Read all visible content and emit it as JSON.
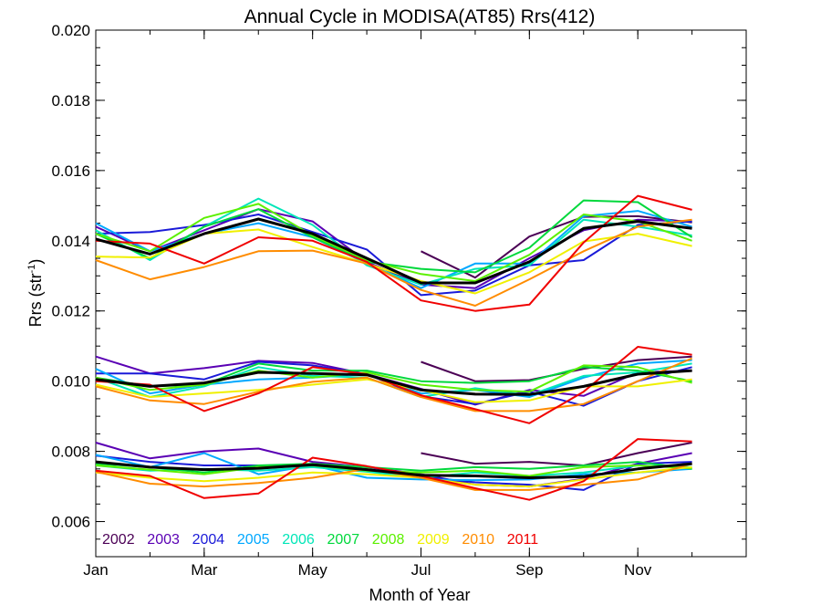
{
  "chart_data": {
    "type": "line",
    "title": "Annual Cycle in MODISA(AT85) Rrs(412)",
    "xlabel": "Month of Year",
    "ylabel_main": "Rrs (str",
    "ylabel_sup": "-1",
    "ylabel_close": ")",
    "xlim": [
      1,
      13
    ],
    "ylim": [
      0.005,
      0.02
    ],
    "x_ticks": [
      {
        "value": 1,
        "label": "Jan"
      },
      {
        "value": 3,
        "label": "Mar"
      },
      {
        "value": 5,
        "label": "May"
      },
      {
        "value": 7,
        "label": "Jul"
      },
      {
        "value": 9,
        "label": "Sep"
      },
      {
        "value": 11,
        "label": "Nov"
      }
    ],
    "y_ticks": [
      {
        "value": 0.006,
        "label": "0.006"
      },
      {
        "value": 0.008,
        "label": "0.008"
      },
      {
        "value": 0.01,
        "label": "0.010"
      },
      {
        "value": 0.012,
        "label": "0.012"
      },
      {
        "value": 0.014,
        "label": "0.014"
      },
      {
        "value": 0.016,
        "label": "0.016"
      },
      {
        "value": 0.018,
        "label": "0.018"
      },
      {
        "value": 0.02,
        "label": "0.020"
      }
    ],
    "grid": false,
    "legend_position": "bottom-left",
    "x": [
      1,
      2,
      3,
      4,
      5,
      6,
      7,
      8,
      9,
      10,
      11,
      12
    ],
    "series": [
      {
        "name": "2002",
        "color": "#4b0055",
        "upper": [
          null,
          null,
          null,
          null,
          null,
          null,
          0.0137,
          0.01295,
          0.01412,
          0.01468,
          0.0147,
          0.01452
        ],
        "middle": [
          null,
          null,
          null,
          null,
          null,
          null,
          0.01055,
          0.01,
          0.01003,
          0.01035,
          0.0106,
          0.0107
        ],
        "lower": [
          null,
          null,
          null,
          null,
          null,
          null,
          0.00795,
          0.00765,
          0.0077,
          0.0076,
          0.00795,
          0.00825
        ]
      },
      {
        "name": "2003",
        "color": "#5a00b4",
        "upper": [
          0.0144,
          0.0137,
          0.0143,
          0.0149,
          0.01455,
          0.0134,
          0.01275,
          0.01265,
          0.0135,
          0.0143,
          0.0146,
          0.01455
        ],
        "middle": [
          0.0107,
          0.01022,
          0.01037,
          0.01058,
          0.01052,
          0.0102,
          0.00978,
          0.00933,
          0.00975,
          0.00958,
          0.01025,
          0.0103
        ],
        "lower": [
          0.00825,
          0.0078,
          0.008,
          0.00808,
          0.0077,
          0.00755,
          0.00735,
          0.00705,
          0.007,
          0.00722,
          0.00765,
          0.00795
        ]
      },
      {
        "name": "2004",
        "color": "#1a1ad8",
        "upper": [
          0.0142,
          0.01425,
          0.01445,
          0.01475,
          0.01425,
          0.01375,
          0.01245,
          0.01258,
          0.0133,
          0.01345,
          0.01445,
          0.01455
        ],
        "middle": [
          0.01022,
          0.01022,
          0.01005,
          0.01055,
          0.01045,
          0.0102,
          0.00957,
          0.00935,
          0.0097,
          0.0093,
          0.01,
          0.0104
        ],
        "lower": [
          0.00788,
          0.0077,
          0.0076,
          0.0076,
          0.0076,
          0.00748,
          0.00728,
          0.00712,
          0.00705,
          0.0069,
          0.00765,
          0.0077
        ]
      },
      {
        "name": "2005",
        "color": "#00a8ff",
        "upper": [
          0.0145,
          0.0137,
          0.0142,
          0.0145,
          0.0141,
          0.01335,
          0.01265,
          0.01335,
          0.01335,
          0.0147,
          0.01485,
          0.0144
        ],
        "middle": [
          0.01035,
          0.00965,
          0.0099,
          0.01005,
          0.0101,
          0.0102,
          0.00965,
          0.00975,
          0.00955,
          0.0101,
          0.0105,
          0.0106
        ],
        "lower": [
          0.0079,
          0.00755,
          0.00795,
          0.00735,
          0.0076,
          0.00725,
          0.0072,
          0.00718,
          0.0072,
          0.00735,
          0.0074,
          0.0075
        ]
      },
      {
        "name": "2006",
        "color": "#00e6b8",
        "upper": [
          0.0143,
          0.01345,
          0.0144,
          0.0152,
          0.01445,
          0.0133,
          0.01275,
          0.0132,
          0.0133,
          0.0146,
          0.0144,
          0.01415
        ],
        "middle": [
          0.0101,
          0.00955,
          0.00985,
          0.0104,
          0.01015,
          0.0101,
          0.00955,
          0.0098,
          0.0096,
          0.01015,
          0.01025,
          0.0105
        ],
        "lower": [
          0.0076,
          0.00745,
          0.0075,
          0.00745,
          0.00755,
          0.00742,
          0.00725,
          0.0074,
          0.0073,
          0.0074,
          0.0076,
          0.00755
        ]
      },
      {
        "name": "2007",
        "color": "#00d83c",
        "upper": [
          0.0142,
          0.0135,
          0.0144,
          0.0149,
          0.0141,
          0.0134,
          0.0132,
          0.0131,
          0.0138,
          0.01515,
          0.0151,
          0.0141
        ],
        "middle": [
          0.0101,
          0.00985,
          0.0099,
          0.0105,
          0.0103,
          0.0103,
          0.01,
          0.00995,
          0.01,
          0.0104,
          0.0103,
          0.01
        ],
        "lower": [
          0.00765,
          0.00755,
          0.0074,
          0.0076,
          0.00765,
          0.00755,
          0.00745,
          0.00755,
          0.0075,
          0.0076,
          0.0077,
          0.0075
        ]
      },
      {
        "name": "2008",
        "color": "#5cf000",
        "upper": [
          0.0142,
          0.0137,
          0.01465,
          0.01505,
          0.01415,
          0.01345,
          0.01305,
          0.01285,
          0.0136,
          0.01475,
          0.01455,
          0.014
        ],
        "middle": [
          0.0101,
          0.00975,
          0.0099,
          0.0103,
          0.0101,
          0.01025,
          0.0099,
          0.00975,
          0.0097,
          0.01045,
          0.0104,
          0.00995
        ],
        "lower": [
          0.0076,
          0.00748,
          0.00735,
          0.00755,
          0.0076,
          0.00745,
          0.0074,
          0.00745,
          0.0073,
          0.00755,
          0.0076,
          0.00752
        ]
      },
      {
        "name": "2009",
        "color": "#f0f000",
        "upper": [
          0.01355,
          0.01352,
          0.0142,
          0.01432,
          0.01382,
          0.01335,
          0.01285,
          0.0125,
          0.0131,
          0.01398,
          0.0142,
          0.01385
        ],
        "middle": [
          0.0099,
          0.00955,
          0.00965,
          0.00975,
          0.0099,
          0.01005,
          0.00975,
          0.0094,
          0.00945,
          0.00985,
          0.00985,
          0.01005
        ],
        "lower": [
          0.0074,
          0.00725,
          0.00715,
          0.00725,
          0.0074,
          0.00735,
          0.00725,
          0.00705,
          0.007,
          0.0072,
          0.0074,
          0.00755
        ]
      },
      {
        "name": "2010",
        "color": "#ff8c00",
        "upper": [
          0.01345,
          0.0129,
          0.01325,
          0.0137,
          0.01372,
          0.01335,
          0.0126,
          0.01215,
          0.0129,
          0.0137,
          0.0144,
          0.0146
        ],
        "middle": [
          0.00985,
          0.00945,
          0.00935,
          0.0097,
          0.00998,
          0.0101,
          0.00955,
          0.00915,
          0.00915,
          0.00935,
          0.01,
          0.01065
        ],
        "lower": [
          0.00742,
          0.00708,
          0.007,
          0.0071,
          0.00725,
          0.0075,
          0.00725,
          0.0069,
          0.0069,
          0.00705,
          0.0072,
          0.00765
        ]
      },
      {
        "name": "2011",
        "color": "#f00000",
        "upper": [
          0.014,
          0.01392,
          0.01335,
          0.0141,
          0.014,
          0.0134,
          0.0123,
          0.012,
          0.01218,
          0.01395,
          0.01528,
          0.01488
        ],
        "middle": [
          0.01,
          0.0099,
          0.00915,
          0.00965,
          0.0104,
          0.0102,
          0.0096,
          0.0092,
          0.0088,
          0.0097,
          0.01098,
          0.01075
        ],
        "lower": [
          0.00745,
          0.0073,
          0.00667,
          0.0068,
          0.00782,
          0.00758,
          0.0073,
          0.00695,
          0.00662,
          0.00715,
          0.00835,
          0.00828
        ]
      },
      {
        "name": "",
        "color": "#000000",
        "upper": [
          0.01405,
          0.01362,
          0.0142,
          0.01462,
          0.0142,
          0.0135,
          0.0128,
          0.0128,
          0.0134,
          0.01435,
          0.01455,
          0.01435
        ],
        "middle": [
          0.01005,
          0.00985,
          0.00995,
          0.01025,
          0.01022,
          0.01018,
          0.00975,
          0.00963,
          0.00962,
          0.00985,
          0.0102,
          0.0103
        ],
        "lower": [
          0.0077,
          0.00755,
          0.00748,
          0.00752,
          0.00762,
          0.00748,
          0.00732,
          0.0073,
          0.00725,
          0.00728,
          0.0075,
          0.00765
        ]
      }
    ]
  }
}
